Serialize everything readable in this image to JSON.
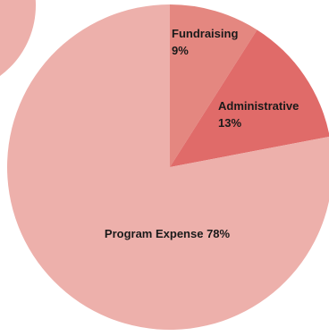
{
  "chart_data": {
    "type": "pie",
    "title": "",
    "slices": [
      {
        "label": "Fundraising",
        "value": 9,
        "percent_text": "9%",
        "color": "#e48780"
      },
      {
        "label": "Administrative",
        "value": 13,
        "percent_text": "13%",
        "color": "#e06b69"
      },
      {
        "label": "Program Expense",
        "value": 78,
        "percent_text": "78%",
        "color": "#edb0ab"
      }
    ],
    "start_angle_deg": 0,
    "direction": "clockwise",
    "legend": "none",
    "background_circle_color": "#edb0ab"
  }
}
